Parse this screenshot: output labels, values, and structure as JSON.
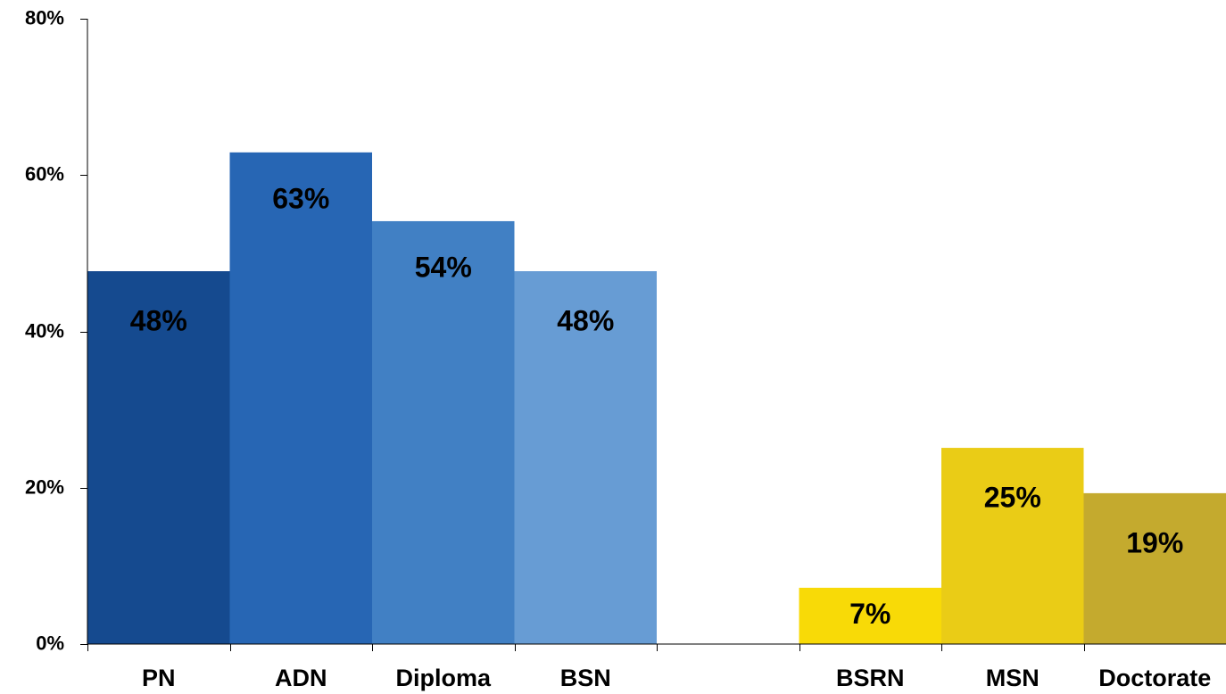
{
  "chart_data": {
    "type": "bar",
    "categories": [
      "PN",
      "ADN",
      "Diploma",
      "BSN",
      "",
      "BSRN",
      "MSN",
      "Doctorate"
    ],
    "values": [
      47.7,
      62.9,
      54.1,
      47.7,
      null,
      7.2,
      25.1,
      19.3
    ],
    "data_labels": [
      "48%",
      "63%",
      "54%",
      "48%",
      "",
      "7%",
      "25%",
      "19%"
    ],
    "colors": [
      "#154A8F",
      "#2766B4",
      "#4180C4",
      "#679CD4",
      "",
      "#F8DA07",
      "#EACC16",
      "#C4AA2E"
    ],
    "ylim": [
      0,
      80
    ],
    "yticks": [
      0,
      20,
      40,
      60,
      80
    ],
    "ytick_labels": [
      "0%",
      "20%",
      "40%",
      "60%",
      "80%"
    ],
    "title": "",
    "xlabel": "",
    "ylabel": "",
    "grid": false,
    "legend": "none"
  }
}
